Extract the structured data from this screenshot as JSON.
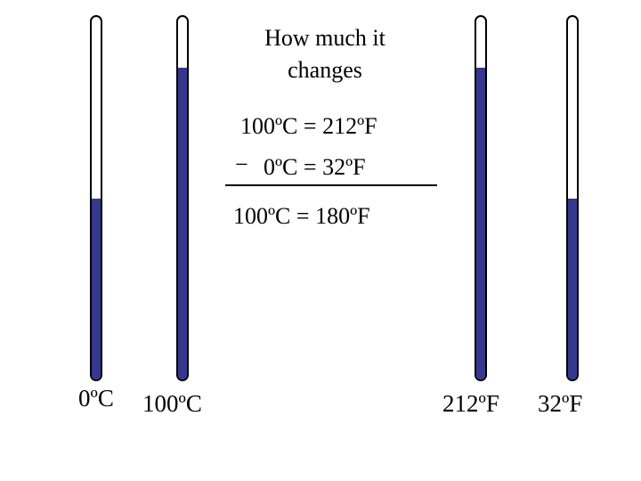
{
  "title_line1": "How  much it",
  "title_line2": "changes",
  "eq_top": "100ºC = 212ºF",
  "minus_sign": "−",
  "eq_middle": "0ºC = 32ºF",
  "eq_result": "100ºC = 180ºF",
  "thermometers": [
    {
      "label": "0ºC",
      "fill_level": 0.5
    },
    {
      "label": "100ºC",
      "fill_level": 0.86
    },
    {
      "label": "212ºF",
      "fill_level": 0.86
    },
    {
      "label": "32ºF",
      "fill_level": 0.5
    }
  ],
  "colors": {
    "liquid": "#35388f",
    "outline": "#000000",
    "background": "#ffffff"
  }
}
